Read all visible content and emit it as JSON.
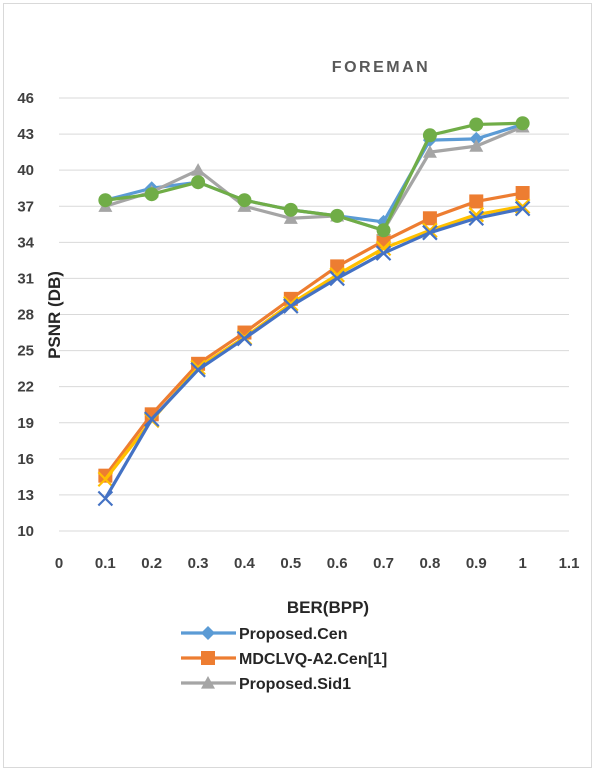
{
  "chart_data": {
    "type": "line",
    "title": "FOREMAN",
    "xlabel": "BER(BPP)",
    "ylabel": "PSNR (DB)",
    "xlim": [
      0,
      1.1
    ],
    "ylim": [
      10,
      46
    ],
    "xticks": [
      0,
      0.1,
      0.2,
      0.3,
      0.4,
      0.5,
      0.6,
      0.7,
      0.8,
      0.9,
      1,
      1.1
    ],
    "yticks": [
      10,
      13,
      16,
      19,
      22,
      25,
      28,
      31,
      34,
      37,
      40,
      43,
      46
    ],
    "grid": true,
    "legend_position": "bottom",
    "x": [
      0.1,
      0.2,
      0.3,
      0.4,
      0.5,
      0.6,
      0.7,
      0.8,
      0.9,
      1
    ],
    "series": [
      {
        "name": "Proposed.Cen",
        "color": "#5B9BD5",
        "marker": "diamond",
        "in_legend": true,
        "values": [
          37.5,
          38.5,
          39.0,
          37.5,
          36.7,
          36.2,
          35.7,
          42.5,
          42.6,
          43.8
        ]
      },
      {
        "name": "MDCLVQ-A2.Cen[1]",
        "color": "#ED7D31",
        "marker": "square",
        "in_legend": true,
        "values": [
          14.6,
          19.7,
          23.9,
          26.5,
          29.3,
          32.0,
          34.1,
          36.0,
          37.4,
          38.1
        ]
      },
      {
        "name": "Proposed.Sid1",
        "color": "#A5A5A5",
        "marker": "triangle",
        "in_legend": true,
        "values": [
          37.0,
          38.2,
          40.0,
          37.0,
          36.0,
          36.2,
          35.0,
          41.5,
          42.0,
          43.6
        ]
      },
      {
        "name": "",
        "color": "#FFC000",
        "marker": "x",
        "in_legend": false,
        "values": [
          14.3,
          19.2,
          23.6,
          26.1,
          28.9,
          31.3,
          33.5,
          35.0,
          36.3,
          37.0
        ]
      },
      {
        "name": "",
        "color": "#4472C4",
        "marker": "x",
        "in_legend": false,
        "values": [
          12.7,
          19.3,
          23.4,
          26.0,
          28.7,
          31.0,
          33.1,
          34.8,
          36.0,
          36.8
        ]
      },
      {
        "name": "",
        "color": "#70AD47",
        "marker": "circle",
        "in_legend": false,
        "values": [
          37.5,
          38.0,
          39.0,
          37.5,
          36.7,
          36.2,
          35.0,
          42.9,
          43.8,
          43.9
        ]
      }
    ]
  }
}
